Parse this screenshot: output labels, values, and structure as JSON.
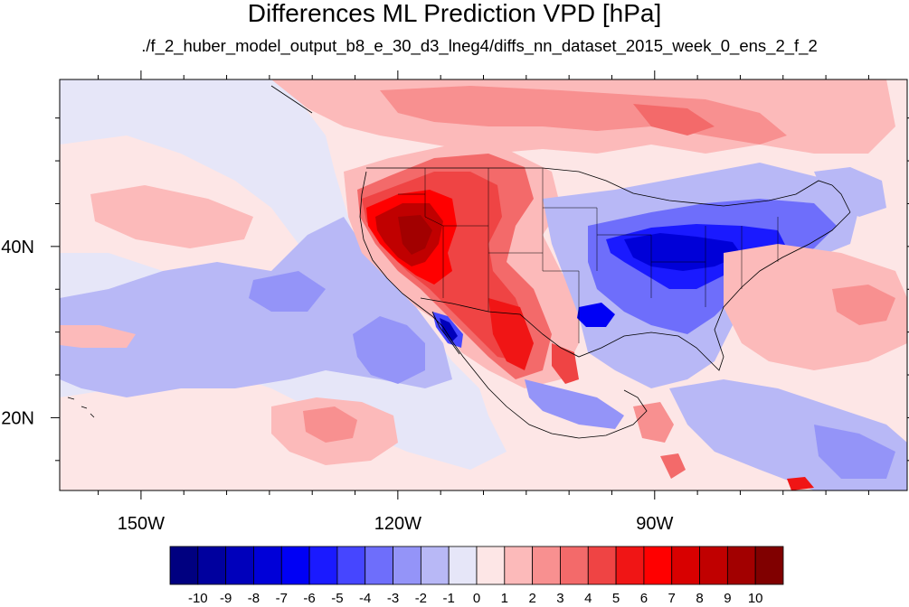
{
  "title": "Differences ML Prediction VPD [hPa]",
  "subtitle": "./f_2_huber_model_output_b8_e_30_d3_lneg4/diffs_nn_dataset_2015_week_0_ens_2_f_2",
  "axes": {
    "x_ticks": [
      {
        "label": "150W",
        "lon": -150
      },
      {
        "label": "120W",
        "lon": -120
      },
      {
        "label": "90W",
        "lon": -90
      }
    ],
    "y_ticks": [
      {
        "label": "40N",
        "lat": 40
      },
      {
        "label": "20N",
        "lat": 20
      }
    ],
    "lon_range": [
      -159.5,
      -60.5
    ],
    "lat_range": [
      11.5,
      59.5
    ]
  },
  "colorbar": {
    "labels": [
      "-10",
      "-9",
      "-8",
      "-7",
      "-6",
      "-5",
      "-4",
      "-3",
      "-2",
      "-1",
      "0",
      "1",
      "2",
      "3",
      "4",
      "5",
      "6",
      "7",
      "8",
      "9",
      "10"
    ],
    "colors": [
      "#000080",
      "#00009e",
      "#0000bb",
      "#0000d8",
      "#0000f5",
      "#1a1aff",
      "#4646ff",
      "#6e6efb",
      "#9494f8",
      "#b8b8f6",
      "#e6e6f8",
      "#fde6e6",
      "#fcbaba",
      "#f89090",
      "#f36a6a",
      "#ef4444",
      "#f01515",
      "#ff0000",
      "#d80000",
      "#c00000",
      "#a20000",
      "#800000"
    ]
  },
  "colors": {
    "background_pale_red": "#fde6e6",
    "background_pale_blue": "#e6e6f8",
    "frame": "#000000"
  }
}
